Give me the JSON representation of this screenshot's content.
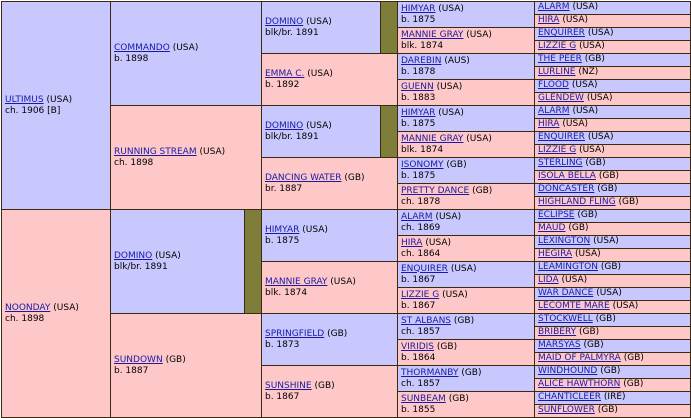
{
  "gen1": [
    {
      "name": "ULTIMUS",
      "country": "(USA)",
      "info": "ch. 1906 [B]"
    },
    {
      "name": "NOONDAY",
      "country": "(USA)",
      "info": "ch. 1898"
    }
  ],
  "gen2": [
    {
      "name": "COMMANDO",
      "country": "(USA)",
      "info": "b. 1898"
    },
    {
      "name": "RUNNING STREAM",
      "country": "(USA)",
      "info": "ch. 1898"
    },
    {
      "name": "DOMINO",
      "country": "(USA)",
      "info": "blk/br. 1891"
    },
    {
      "name": "SUNDOWN",
      "country": "(GB)",
      "info": "b. 1887"
    }
  ],
  "gen3": [
    {
      "name": "DOMINO",
      "country": "(USA)",
      "info": "blk/br. 1891"
    },
    {
      "name": "EMMA C.",
      "country": "(USA)",
      "info": "b. 1892"
    },
    {
      "name": "DOMINO",
      "country": "(USA)",
      "info": "blk/br. 1891"
    },
    {
      "name": "DANCING WATER",
      "country": "(GB)",
      "info": "br. 1887"
    },
    {
      "name": "HIMYAR",
      "country": "(USA)",
      "info": "b. 1875"
    },
    {
      "name": "MANNIE GRAY",
      "country": "(USA)",
      "info": "blk. 1874"
    },
    {
      "name": "SPRINGFIELD",
      "country": "(GB)",
      "info": "b. 1873"
    },
    {
      "name": "SUNSHINE",
      "country": "(GB)",
      "info": "b. 1867"
    }
  ],
  "gen4": [
    {
      "name": "HIMYAR",
      "country": "(USA)",
      "info": "b. 1875"
    },
    {
      "name": "MANNIE GRAY",
      "country": "(USA)",
      "info": "blk. 1874"
    },
    {
      "name": "DAREBIN",
      "country": "(AUS)",
      "info": "b. 1878"
    },
    {
      "name": "GUENN",
      "country": "(USA)",
      "info": "b. 1883"
    },
    {
      "name": "HIMYAR",
      "country": "(USA)",
      "info": "b. 1875"
    },
    {
      "name": "MANNIE GRAY",
      "country": "(USA)",
      "info": "blk. 1874"
    },
    {
      "name": "ISONOMY",
      "country": "(GB)",
      "info": "b. 1875"
    },
    {
      "name": "PRETTY DANCE",
      "country": "(GB)",
      "info": "ch. 1878"
    },
    {
      "name": "ALARM",
      "country": "(USA)",
      "info": "ch. 1869"
    },
    {
      "name": "HIRA",
      "country": "(USA)",
      "info": "ch. 1864"
    },
    {
      "name": "ENQUIRER",
      "country": "(USA)",
      "info": "b. 1867"
    },
    {
      "name": "LIZZIE G",
      "country": "(USA)",
      "info": "b. 1867"
    },
    {
      "name": "ST ALBANS",
      "country": "(GB)",
      "info": "ch. 1857"
    },
    {
      "name": "VIRIDIS",
      "country": "(GB)",
      "info": "b. 1864"
    },
    {
      "name": "THORMANBY",
      "country": "(GB)",
      "info": "ch. 1857"
    },
    {
      "name": "SUNBEAM",
      "country": "(GB)",
      "info": "b. 1855"
    }
  ],
  "gen5": [
    {
      "name": "ALARM",
      "country": "(USA)"
    },
    {
      "name": "HIRA",
      "country": "(USA)"
    },
    {
      "name": "ENQUIRER",
      "country": "(USA)"
    },
    {
      "name": "LIZZIE G",
      "country": "(USA)"
    },
    {
      "name": "THE PEER",
      "country": "(GB)"
    },
    {
      "name": "LURLINE",
      "country": "(NZ)"
    },
    {
      "name": "FLOOD",
      "country": "(USA)"
    },
    {
      "name": "GLENDEW",
      "country": "(USA)"
    },
    {
      "name": "ALARM",
      "country": "(USA)"
    },
    {
      "name": "HIRA",
      "country": "(USA)"
    },
    {
      "name": "ENQUIRER",
      "country": "(USA)"
    },
    {
      "name": "LIZZIE G",
      "country": "(USA)"
    },
    {
      "name": "STERLING",
      "country": "(GB)"
    },
    {
      "name": "ISOLA BELLA",
      "country": "(GB)"
    },
    {
      "name": "DONCASTER",
      "country": "(GB)"
    },
    {
      "name": "HIGHLAND FLING",
      "country": "(GB)"
    },
    {
      "name": "ECLIPSE",
      "country": "(GB)"
    },
    {
      "name": "MAUD",
      "country": "(GB)"
    },
    {
      "name": "LEXINGTON",
      "country": "(USA)"
    },
    {
      "name": "HEGIRA",
      "country": "(USA)"
    },
    {
      "name": "LEAMINGTON",
      "country": "(GB)"
    },
    {
      "name": "LIDA",
      "country": "(USA)"
    },
    {
      "name": "WAR DANCE",
      "country": "(USA)"
    },
    {
      "name": "LECOMTE MARE",
      "country": "(USA)"
    },
    {
      "name": "STOCKWELL",
      "country": "(GB)"
    },
    {
      "name": "BRIBERY",
      "country": "(GB)"
    },
    {
      "name": "MARSYAS",
      "country": "(GB)"
    },
    {
      "name": "MAID OF PALMYRA",
      "country": "(GB)"
    },
    {
      "name": "WINDHOUND",
      "country": "(GB)"
    },
    {
      "name": "ALICE HAWTHORN",
      "country": "(GB)"
    },
    {
      "name": "CHANTICLEER",
      "country": "(IRE)"
    },
    {
      "name": "SUNFLOWER",
      "country": "(GB)"
    }
  ],
  "colors": {
    "male": "#c8c8ff",
    "female": "#ffc8c8",
    "spacer": "#7e7e3a",
    "border": "#3a2a10",
    "link": "#1a1aa6"
  }
}
